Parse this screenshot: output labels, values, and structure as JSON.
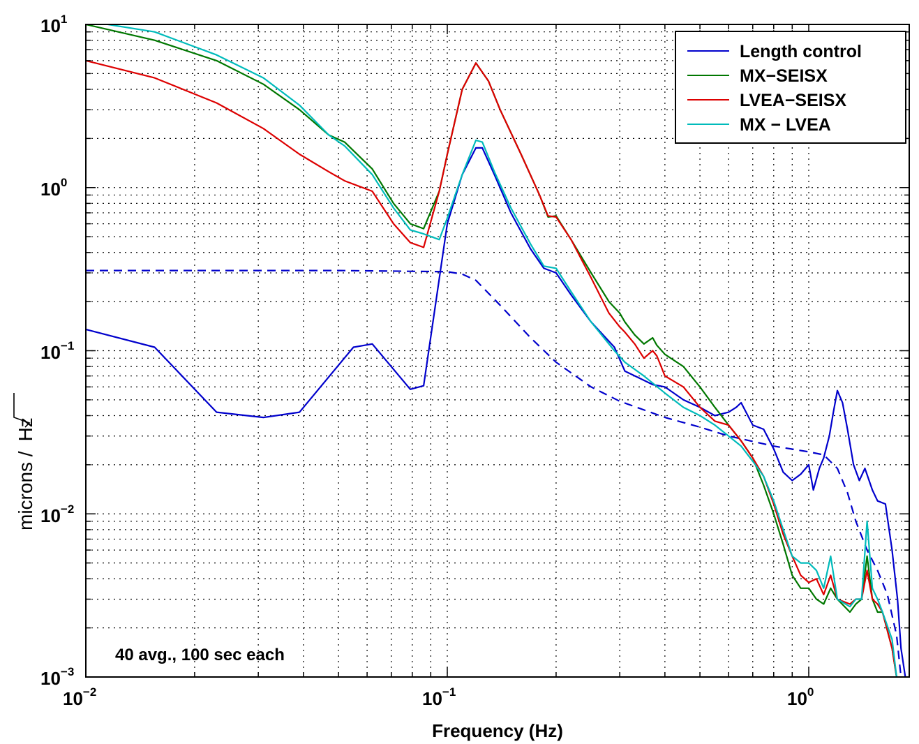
{
  "chart_data": {
    "type": "line",
    "xscale": "log",
    "yscale": "log",
    "xlim": [
      0.01,
      2
    ],
    "ylim": [
      0.001,
      10
    ],
    "xlabel": "Frequency (Hz)",
    "ylabel_text": "microns /",
    "ylabel_root": "Hz",
    "xticks": [
      {
        "base": "10",
        "exp": "−2"
      },
      {
        "base": "10",
        "exp": "−1"
      },
      {
        "base": "10",
        "exp": "0"
      }
    ],
    "yticks": [
      {
        "base": "10",
        "exp": "1"
      },
      {
        "base": "10",
        "exp": "0"
      },
      {
        "base": "10",
        "exp": "−1"
      },
      {
        "base": "10",
        "exp": "−2"
      },
      {
        "base": "10",
        "exp": "−3"
      }
    ],
    "grid": true,
    "legend_position": "top-right",
    "annotation": "40 avg., 100 sec each",
    "series": [
      {
        "name": "Length control",
        "color": "#0000cc",
        "dash": "solid",
        "points": [
          [
            0.01,
            0.135
          ],
          [
            0.0155,
            0.105
          ],
          [
            0.023,
            0.042
          ],
          [
            0.031,
            0.039
          ],
          [
            0.039,
            0.042
          ],
          [
            0.055,
            0.105
          ],
          [
            0.062,
            0.11
          ],
          [
            0.079,
            0.058
          ],
          [
            0.086,
            0.061
          ],
          [
            0.1,
            0.6
          ],
          [
            0.11,
            1.2
          ],
          [
            0.12,
            1.75
          ],
          [
            0.125,
            1.75
          ],
          [
            0.135,
            1.2
          ],
          [
            0.15,
            0.7
          ],
          [
            0.17,
            0.42
          ],
          [
            0.185,
            0.32
          ],
          [
            0.2,
            0.3
          ],
          [
            0.22,
            0.22
          ],
          [
            0.25,
            0.15
          ],
          [
            0.29,
            0.105
          ],
          [
            0.31,
            0.075
          ],
          [
            0.34,
            0.068
          ],
          [
            0.37,
            0.062
          ],
          [
            0.4,
            0.06
          ],
          [
            0.45,
            0.05
          ],
          [
            0.5,
            0.045
          ],
          [
            0.55,
            0.04
          ],
          [
            0.6,
            0.042
          ],
          [
            0.63,
            0.045
          ],
          [
            0.65,
            0.048
          ],
          [
            0.7,
            0.035
          ],
          [
            0.75,
            0.033
          ],
          [
            0.8,
            0.025
          ],
          [
            0.85,
            0.018
          ],
          [
            0.9,
            0.016
          ],
          [
            0.95,
            0.0175
          ],
          [
            1.0,
            0.02
          ],
          [
            1.03,
            0.014
          ],
          [
            1.07,
            0.019
          ],
          [
            1.1,
            0.022
          ],
          [
            1.14,
            0.03
          ],
          [
            1.17,
            0.042
          ],
          [
            1.2,
            0.057
          ],
          [
            1.24,
            0.048
          ],
          [
            1.28,
            0.033
          ],
          [
            1.33,
            0.02
          ],
          [
            1.38,
            0.016
          ],
          [
            1.43,
            0.019
          ],
          [
            1.5,
            0.014
          ],
          [
            1.55,
            0.012
          ],
          [
            1.63,
            0.0115
          ],
          [
            1.7,
            0.006
          ],
          [
            1.76,
            0.003
          ],
          [
            1.8,
            0.0015
          ],
          [
            1.85,
            0.001
          ]
        ]
      },
      {
        "name": "",
        "color": "#0000cc",
        "dash": "dashed",
        "points": [
          [
            0.01,
            0.31
          ],
          [
            0.05,
            0.31
          ],
          [
            0.1,
            0.305
          ],
          [
            0.11,
            0.295
          ],
          [
            0.12,
            0.27
          ],
          [
            0.14,
            0.19
          ],
          [
            0.17,
            0.12
          ],
          [
            0.2,
            0.085
          ],
          [
            0.25,
            0.06
          ],
          [
            0.3,
            0.049
          ],
          [
            0.4,
            0.039
          ],
          [
            0.5,
            0.034
          ],
          [
            0.6,
            0.03
          ],
          [
            0.8,
            0.026
          ],
          [
            1.0,
            0.024
          ],
          [
            1.1,
            0.023
          ],
          [
            1.2,
            0.019
          ],
          [
            1.28,
            0.0135
          ],
          [
            1.35,
            0.009
          ],
          [
            1.45,
            0.006
          ],
          [
            1.55,
            0.0045
          ],
          [
            1.65,
            0.0032
          ],
          [
            1.75,
            0.0018
          ],
          [
            1.8,
            0.001
          ]
        ]
      },
      {
        "name": "MX−SEISX",
        "color": "#007700",
        "dash": "solid",
        "points": [
          [
            0.01,
            10
          ],
          [
            0.0155,
            8
          ],
          [
            0.023,
            6
          ],
          [
            0.031,
            4.3
          ],
          [
            0.039,
            3
          ],
          [
            0.047,
            2.1
          ],
          [
            0.052,
            1.9
          ],
          [
            0.062,
            1.3
          ],
          [
            0.071,
            0.8
          ],
          [
            0.079,
            0.6
          ],
          [
            0.086,
            0.56
          ],
          [
            0.095,
            0.95
          ],
          [
            0.1,
            1.6
          ],
          [
            0.11,
            4
          ],
          [
            0.12,
            5.8
          ],
          [
            0.13,
            4.5
          ],
          [
            0.14,
            3
          ],
          [
            0.16,
            1.6
          ],
          [
            0.18,
            0.9
          ],
          [
            0.19,
            0.66
          ],
          [
            0.2,
            0.67
          ],
          [
            0.22,
            0.48
          ],
          [
            0.25,
            0.3
          ],
          [
            0.28,
            0.2
          ],
          [
            0.3,
            0.17
          ],
          [
            0.31,
            0.15
          ],
          [
            0.33,
            0.125
          ],
          [
            0.35,
            0.11
          ],
          [
            0.37,
            0.12
          ],
          [
            0.38,
            0.108
          ],
          [
            0.4,
            0.095
          ],
          [
            0.45,
            0.08
          ],
          [
            0.5,
            0.06
          ],
          [
            0.55,
            0.045
          ],
          [
            0.6,
            0.035
          ],
          [
            0.65,
            0.028
          ],
          [
            0.7,
            0.022
          ],
          [
            0.75,
            0.015
          ],
          [
            0.8,
            0.01
          ],
          [
            0.85,
            0.0065
          ],
          [
            0.9,
            0.0042
          ],
          [
            0.95,
            0.0035
          ],
          [
            1.0,
            0.0035
          ],
          [
            1.05,
            0.003
          ],
          [
            1.1,
            0.0028
          ],
          [
            1.15,
            0.0035
          ],
          [
            1.2,
            0.003
          ],
          [
            1.3,
            0.0025
          ],
          [
            1.35,
            0.0028
          ],
          [
            1.4,
            0.003
          ],
          [
            1.45,
            0.0055
          ],
          [
            1.5,
            0.003
          ],
          [
            1.55,
            0.0025
          ],
          [
            1.6,
            0.0025
          ],
          [
            1.7,
            0.0015
          ],
          [
            1.75,
            0.001
          ]
        ]
      },
      {
        "name": "LVEA−SEISX",
        "color": "#dd0000",
        "dash": "solid",
        "points": [
          [
            0.01,
            6
          ],
          [
            0.0155,
            4.7
          ],
          [
            0.023,
            3.3
          ],
          [
            0.031,
            2.3
          ],
          [
            0.039,
            1.6
          ],
          [
            0.047,
            1.25
          ],
          [
            0.052,
            1.1
          ],
          [
            0.062,
            0.95
          ],
          [
            0.071,
            0.6
          ],
          [
            0.079,
            0.46
          ],
          [
            0.086,
            0.43
          ],
          [
            0.095,
            0.95
          ],
          [
            0.1,
            1.6
          ],
          [
            0.11,
            4
          ],
          [
            0.12,
            5.8
          ],
          [
            0.13,
            4.5
          ],
          [
            0.14,
            3
          ],
          [
            0.16,
            1.6
          ],
          [
            0.18,
            0.9
          ],
          [
            0.19,
            0.67
          ],
          [
            0.2,
            0.66
          ],
          [
            0.22,
            0.48
          ],
          [
            0.25,
            0.28
          ],
          [
            0.28,
            0.17
          ],
          [
            0.3,
            0.14
          ],
          [
            0.31,
            0.13
          ],
          [
            0.33,
            0.11
          ],
          [
            0.35,
            0.09
          ],
          [
            0.37,
            0.1
          ],
          [
            0.38,
            0.093
          ],
          [
            0.4,
            0.07
          ],
          [
            0.45,
            0.06
          ],
          [
            0.5,
            0.045
          ],
          [
            0.55,
            0.037
          ],
          [
            0.6,
            0.035
          ],
          [
            0.65,
            0.028
          ],
          [
            0.7,
            0.022
          ],
          [
            0.75,
            0.017
          ],
          [
            0.8,
            0.0115
          ],
          [
            0.85,
            0.0075
          ],
          [
            0.9,
            0.0055
          ],
          [
            0.95,
            0.0042
          ],
          [
            1.0,
            0.0038
          ],
          [
            1.05,
            0.004
          ],
          [
            1.1,
            0.0032
          ],
          [
            1.15,
            0.0042
          ],
          [
            1.2,
            0.003
          ],
          [
            1.3,
            0.0028
          ],
          [
            1.35,
            0.003
          ],
          [
            1.4,
            0.003
          ],
          [
            1.45,
            0.0045
          ],
          [
            1.5,
            0.003
          ],
          [
            1.55,
            0.0028
          ],
          [
            1.6,
            0.0025
          ],
          [
            1.7,
            0.0015
          ],
          [
            1.75,
            0.001
          ]
        ]
      },
      {
        "name": "MX − LVEA",
        "color": "#00bbbb",
        "dash": "solid",
        "points": [
          [
            0.01,
            10.5
          ],
          [
            0.0155,
            9
          ],
          [
            0.023,
            6.5
          ],
          [
            0.031,
            4.7
          ],
          [
            0.039,
            3.2
          ],
          [
            0.047,
            2.1
          ],
          [
            0.052,
            1.8
          ],
          [
            0.062,
            1.2
          ],
          [
            0.071,
            0.75
          ],
          [
            0.079,
            0.55
          ],
          [
            0.086,
            0.52
          ],
          [
            0.095,
            0.48
          ],
          [
            0.1,
            0.65
          ],
          [
            0.11,
            1.2
          ],
          [
            0.12,
            1.95
          ],
          [
            0.125,
            1.9
          ],
          [
            0.135,
            1.25
          ],
          [
            0.15,
            0.75
          ],
          [
            0.17,
            0.45
          ],
          [
            0.185,
            0.33
          ],
          [
            0.2,
            0.32
          ],
          [
            0.22,
            0.23
          ],
          [
            0.25,
            0.15
          ],
          [
            0.29,
            0.1
          ],
          [
            0.31,
            0.085
          ],
          [
            0.35,
            0.07
          ],
          [
            0.4,
            0.055
          ],
          [
            0.45,
            0.045
          ],
          [
            0.5,
            0.04
          ],
          [
            0.55,
            0.035
          ],
          [
            0.6,
            0.03
          ],
          [
            0.65,
            0.026
          ],
          [
            0.7,
            0.021
          ],
          [
            0.75,
            0.017
          ],
          [
            0.8,
            0.012
          ],
          [
            0.85,
            0.008
          ],
          [
            0.9,
            0.0055
          ],
          [
            0.95,
            0.005
          ],
          [
            1.0,
            0.005
          ],
          [
            1.05,
            0.0045
          ],
          [
            1.1,
            0.0035
          ],
          [
            1.15,
            0.0055
          ],
          [
            1.2,
            0.003
          ],
          [
            1.3,
            0.0027
          ],
          [
            1.35,
            0.003
          ],
          [
            1.4,
            0.003
          ],
          [
            1.45,
            0.009
          ],
          [
            1.5,
            0.0035
          ],
          [
            1.55,
            0.003
          ],
          [
            1.6,
            0.0025
          ],
          [
            1.7,
            0.0017
          ],
          [
            1.75,
            0.001
          ]
        ]
      }
    ]
  }
}
